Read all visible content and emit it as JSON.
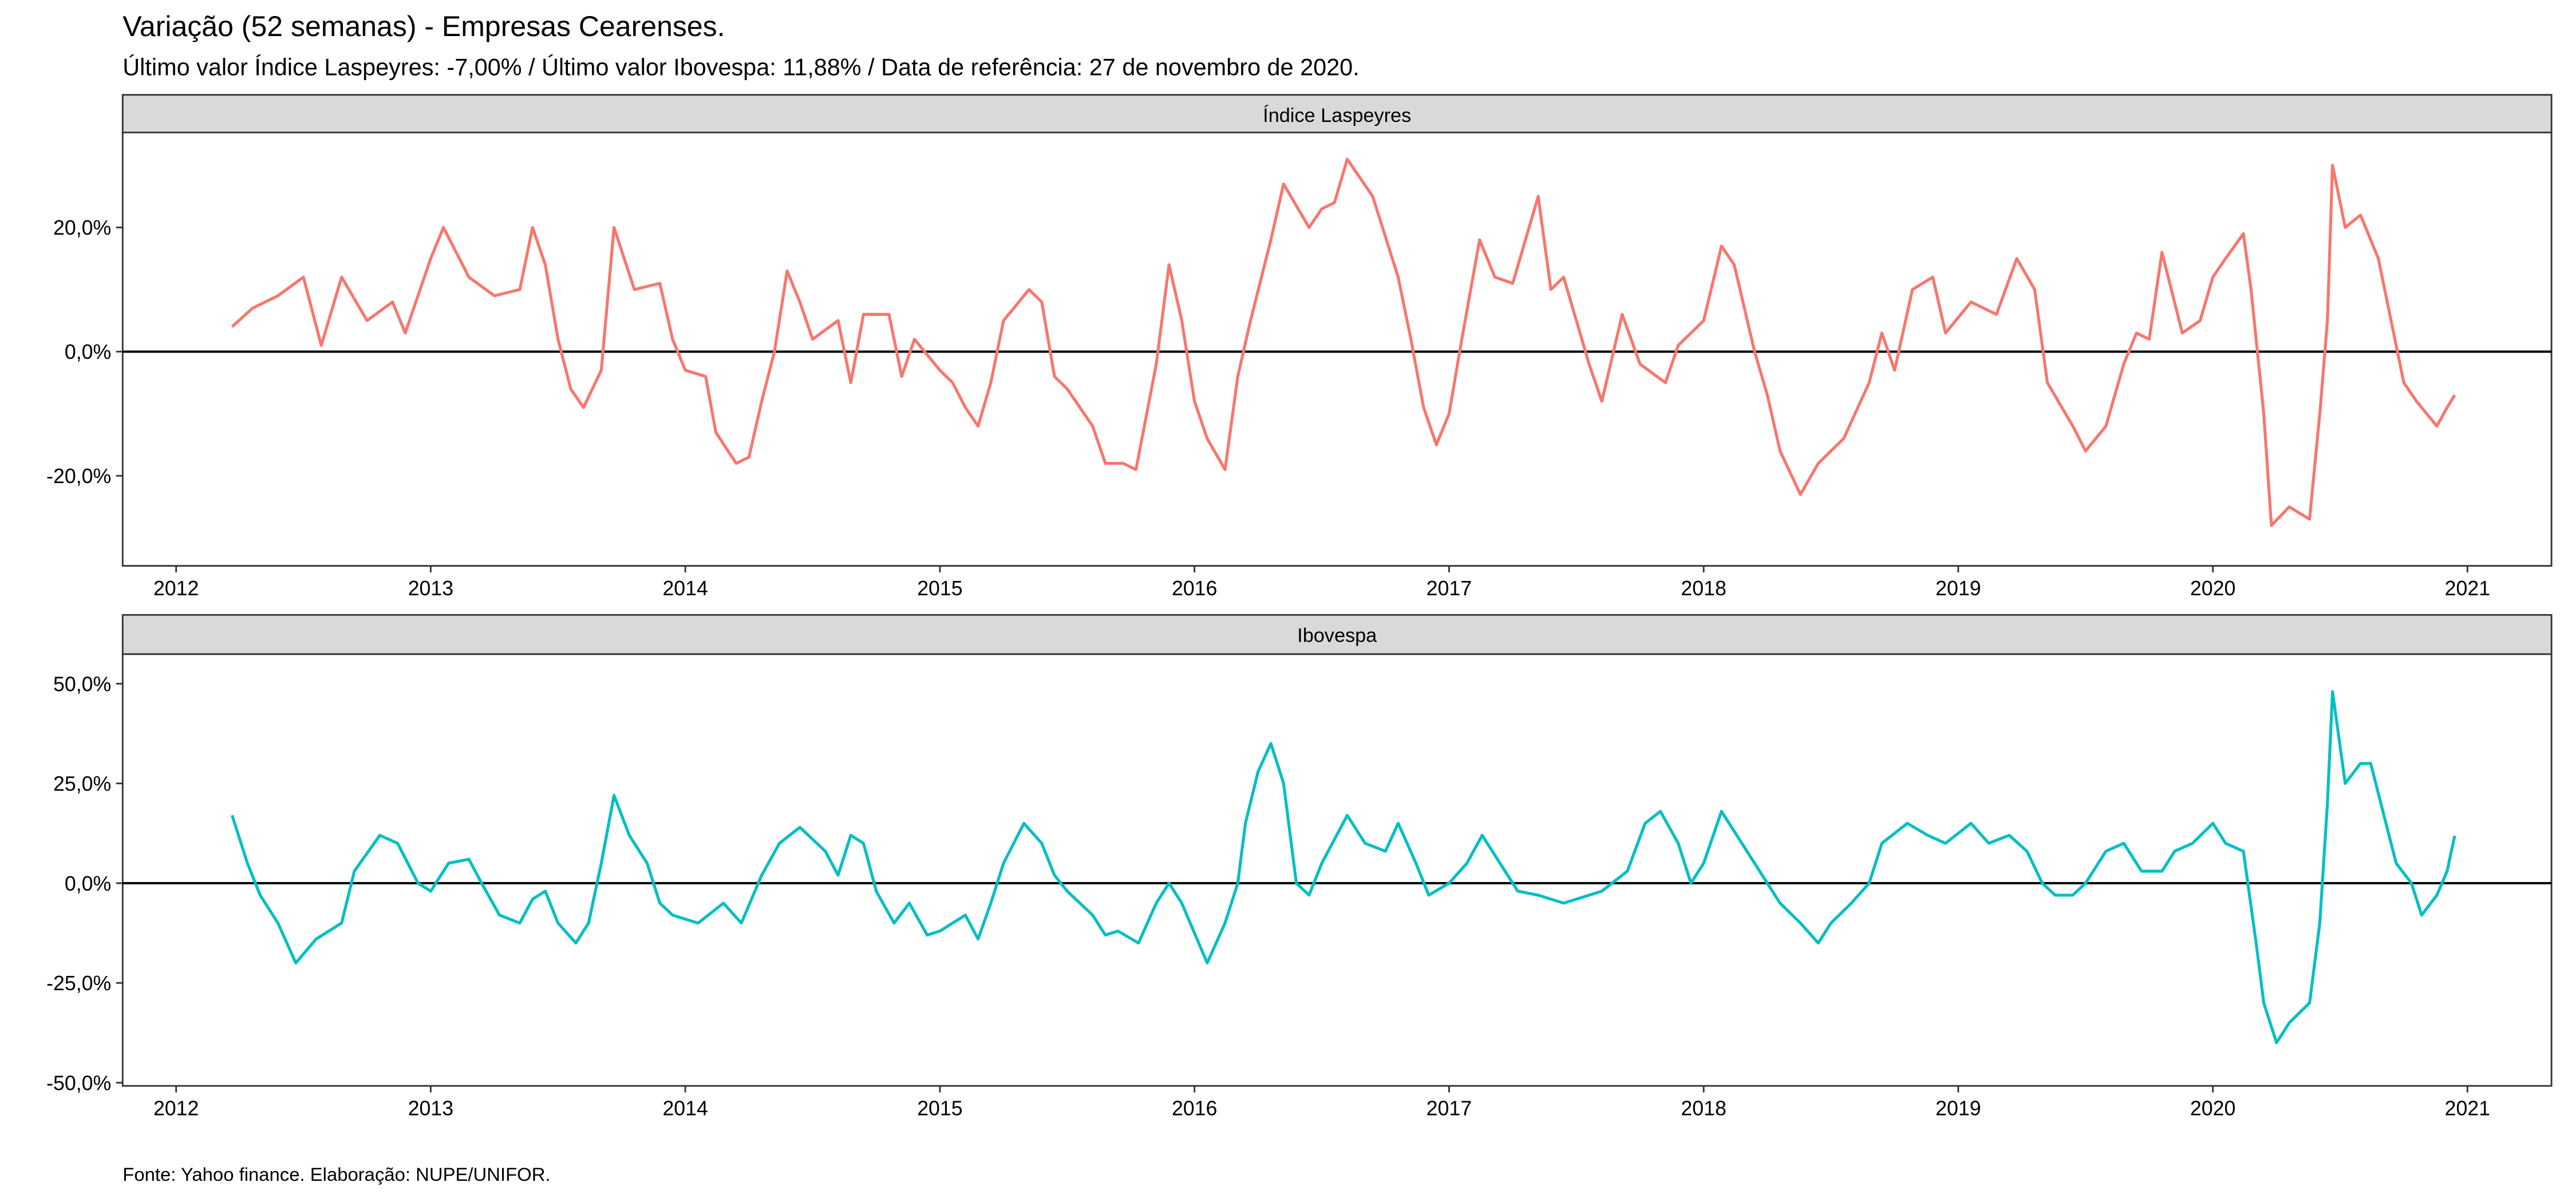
{
  "title": "Variação (52 semanas) - Empresas Cearenses.",
  "subtitle": "Último valor Índice Laspeyres: -7,00% / Último valor Ibovespa: 11,88% / Data de referência: 27 de novembro de 2020.",
  "caption": "Fonte: Yahoo finance. Elaboração: NUPE/UNIFOR.",
  "chart_data": [
    {
      "type": "line",
      "panel_title": "Índice Laspeyres",
      "color": "#F8766D",
      "hline": 0,
      "xlim": [
        2011.79,
        2021.33
      ],
      "xticks": [
        2012,
        2013,
        2014,
        2015,
        2016,
        2017,
        2018,
        2019,
        2020,
        2021
      ],
      "ylim": [
        -34.5,
        35.3
      ],
      "yticks": [
        {
          "value": -20,
          "label": "-20,0%"
        },
        {
          "value": 0,
          "label": "0,0%"
        },
        {
          "value": 20,
          "label": "20,0%"
        }
      ],
      "x": [
        2012.22,
        2012.3,
        2012.4,
        2012.5,
        2012.57,
        2012.65,
        2012.75,
        2012.85,
        2012.9,
        2013.0,
        2013.05,
        2013.15,
        2013.25,
        2013.35,
        2013.4,
        2013.45,
        2013.5,
        2013.55,
        2013.6,
        2013.67,
        2013.72,
        2013.8,
        2013.9,
        2013.95,
        2014.0,
        2014.08,
        2014.12,
        2014.2,
        2014.25,
        2014.3,
        2014.35,
        2014.4,
        2014.45,
        2014.5,
        2014.6,
        2014.65,
        2014.7,
        2014.8,
        2014.85,
        2014.9,
        2015.0,
        2015.05,
        2015.1,
        2015.15,
        2015.2,
        2015.25,
        2015.35,
        2015.4,
        2015.45,
        2015.5,
        2015.6,
        2015.65,
        2015.72,
        2015.77,
        2015.85,
        2015.9,
        2015.95,
        2016.0,
        2016.05,
        2016.12,
        2016.17,
        2016.22,
        2016.3,
        2016.35,
        2016.45,
        2016.5,
        2016.55,
        2016.6,
        2016.7,
        2016.8,
        2016.85,
        2016.9,
        2016.95,
        2017.0,
        2017.05,
        2017.12,
        2017.18,
        2017.25,
        2017.35,
        2017.4,
        2017.45,
        2017.5,
        2017.55,
        2017.6,
        2017.68,
        2017.75,
        2017.85,
        2017.9,
        2018.0,
        2018.07,
        2018.12,
        2018.2,
        2018.25,
        2018.3,
        2018.38,
        2018.45,
        2018.55,
        2018.65,
        2018.7,
        2018.75,
        2018.82,
        2018.9,
        2018.95,
        2019.05,
        2019.15,
        2019.23,
        2019.3,
        2019.35,
        2019.45,
        2019.5,
        2019.58,
        2019.65,
        2019.7,
        2019.75,
        2019.8,
        2019.88,
        2019.95,
        2020.0,
        2020.05,
        2020.12,
        2020.15,
        2020.2,
        2020.23,
        2020.3,
        2020.38,
        2020.42,
        2020.45,
        2020.47,
        2020.52,
        2020.58,
        2020.65,
        2020.7,
        2020.75,
        2020.8,
        2020.88,
        2020.92,
        2020.95
      ],
      "values": [
        4,
        7,
        9,
        12,
        1,
        12,
        5,
        8,
        3,
        15,
        20,
        12,
        9,
        10,
        20,
        14,
        2,
        -6,
        -9,
        -3,
        20,
        10,
        11,
        2,
        -3,
        -4,
        -13,
        -18,
        -17,
        -8,
        0,
        13,
        8,
        2,
        5,
        -5,
        6,
        6,
        -4,
        2,
        -3,
        -5,
        -9,
        -12,
        -5,
        5,
        10,
        8,
        -4,
        -6,
        -12,
        -18,
        -18,
        -19,
        -2,
        14,
        5,
        -8,
        -14,
        -19,
        -4,
        5,
        18,
        27,
        20,
        23,
        24,
        31,
        25,
        12,
        2,
        -9,
        -15,
        -10,
        2,
        18,
        12,
        11,
        25,
        10,
        12,
        5,
        -2,
        -8,
        6,
        -2,
        -5,
        1,
        5,
        17,
        14,
        0,
        -7,
        -16,
        -23,
        -18,
        -14,
        -5,
        3,
        -3,
        10,
        12,
        3,
        8,
        6,
        15,
        10,
        -5,
        -12,
        -16,
        -12,
        -2,
        3,
        2,
        16,
        3,
        5,
        12,
        15,
        19,
        10,
        -10,
        -28,
        -25,
        -27,
        -10,
        5,
        30,
        20,
        22,
        15,
        5,
        -5,
        -8,
        -12,
        -9,
        -7
      ]
    },
    {
      "type": "line",
      "panel_title": "Ibovespa",
      "color": "#00BFC4",
      "hline": 0,
      "xlim": [
        2011.79,
        2021.33
      ],
      "xticks": [
        2012,
        2013,
        2014,
        2015,
        2016,
        2017,
        2018,
        2019,
        2020,
        2021
      ],
      "ylim": [
        -50.8,
        57.4
      ],
      "yticks": [
        {
          "value": -50,
          "label": "-50,0%"
        },
        {
          "value": -25,
          "label": "-25,0%"
        },
        {
          "value": 0,
          "label": "0,0%"
        },
        {
          "value": 25,
          "label": "25,0%"
        },
        {
          "value": 50,
          "label": "50,0%"
        }
      ],
      "x": [
        2012.22,
        2012.28,
        2012.33,
        2012.4,
        2012.47,
        2012.55,
        2012.65,
        2012.7,
        2012.8,
        2012.87,
        2012.95,
        2013.0,
        2013.07,
        2013.15,
        2013.2,
        2013.27,
        2013.35,
        2013.4,
        2013.45,
        2013.5,
        2013.57,
        2013.62,
        2013.67,
        2013.72,
        2013.78,
        2013.85,
        2013.9,
        2013.95,
        2014.05,
        2014.15,
        2014.22,
        2014.3,
        2014.37,
        2014.45,
        2014.55,
        2014.6,
        2014.65,
        2014.7,
        2014.75,
        2014.82,
        2014.88,
        2014.95,
        2015.0,
        2015.1,
        2015.15,
        2015.2,
        2015.25,
        2015.33,
        2015.4,
        2015.45,
        2015.5,
        2015.6,
        2015.65,
        2015.7,
        2015.78,
        2015.85,
        2015.9,
        2015.95,
        2016.05,
        2016.12,
        2016.17,
        2016.2,
        2016.25,
        2016.3,
        2016.35,
        2016.4,
        2016.45,
        2016.5,
        2016.6,
        2016.67,
        2016.75,
        2016.8,
        2016.87,
        2016.92,
        2017.0,
        2017.07,
        2017.13,
        2017.2,
        2017.27,
        2017.35,
        2017.45,
        2017.55,
        2017.6,
        2017.7,
        2017.77,
        2017.83,
        2017.9,
        2017.95,
        2018.0,
        2018.07,
        2018.13,
        2018.2,
        2018.3,
        2018.38,
        2018.45,
        2018.5,
        2018.58,
        2018.65,
        2018.7,
        2018.8,
        2018.88,
        2018.95,
        2019.05,
        2019.12,
        2019.2,
        2019.27,
        2019.33,
        2019.38,
        2019.45,
        2019.5,
        2019.58,
        2019.65,
        2019.72,
        2019.8,
        2019.85,
        2019.92,
        2020.0,
        2020.05,
        2020.12,
        2020.17,
        2020.2,
        2020.25,
        2020.3,
        2020.38,
        2020.42,
        2020.45,
        2020.47,
        2020.52,
        2020.58,
        2020.62,
        2020.68,
        2020.72,
        2020.78,
        2020.82,
        2020.88,
        2020.92,
        2020.95
      ],
      "values": [
        17,
        5,
        -3,
        -10,
        -20,
        -14,
        -10,
        3,
        12,
        10,
        0,
        -2,
        5,
        6,
        0,
        -8,
        -10,
        -4,
        -2,
        -10,
        -15,
        -10,
        5,
        22,
        12,
        5,
        -5,
        -8,
        -10,
        -5,
        -10,
        2,
        10,
        14,
        8,
        2,
        12,
        10,
        -2,
        -10,
        -5,
        -13,
        -12,
        -8,
        -14,
        -5,
        5,
        15,
        10,
        2,
        -2,
        -8,
        -13,
        -12,
        -15,
        -5,
        0,
        -5,
        -20,
        -10,
        0,
        15,
        28,
        35,
        25,
        0,
        -3,
        5,
        17,
        10,
        8,
        15,
        5,
        -3,
        0,
        5,
        12,
        5,
        -2,
        -3,
        -5,
        -3,
        -2,
        3,
        15,
        18,
        10,
        0,
        5,
        18,
        12,
        5,
        -5,
        -10,
        -15,
        -10,
        -5,
        0,
        10,
        15,
        12,
        10,
        15,
        10,
        12,
        8,
        0,
        -3,
        -3,
        0,
        8,
        10,
        3,
        3,
        8,
        10,
        15,
        10,
        8,
        -15,
        -30,
        -40,
        -35,
        -30,
        -10,
        20,
        48,
        25,
        30,
        30,
        15,
        5,
        0,
        -8,
        -3,
        3,
        11.88
      ]
    }
  ]
}
